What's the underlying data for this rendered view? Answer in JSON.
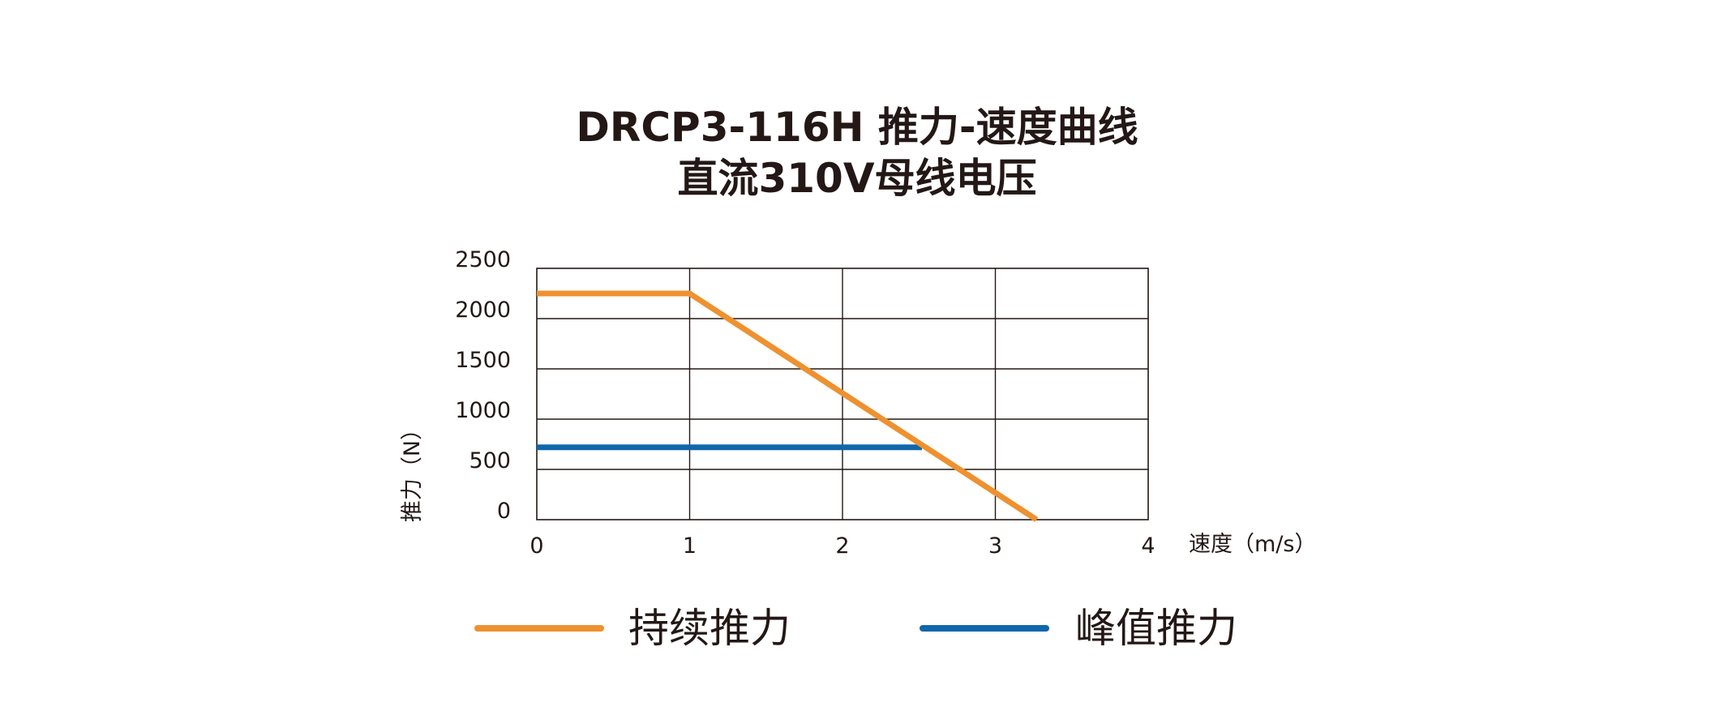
{
  "chart_data": {
    "type": "line",
    "title": "DRCP3-116H 推力-速度曲线",
    "subtitle": "直流310V母线电压",
    "xlabel": "速度（m/s）",
    "ylabel": "推力（N）",
    "xlim": [
      0,
      4
    ],
    "ylim": [
      0,
      2500
    ],
    "x_ticks": [
      "0",
      "1",
      "2",
      "3",
      "4"
    ],
    "y_ticks": [
      "0",
      "500",
      "1000",
      "1500",
      "2000",
      "2500"
    ],
    "grid": true,
    "legend_placement": "bottom",
    "series": [
      {
        "name": "持续推力",
        "color": "#EE912F",
        "points": [
          [
            0,
            2250
          ],
          [
            1,
            2250
          ],
          [
            3.27,
            0
          ]
        ]
      },
      {
        "name": "峰值推力",
        "color": "#0F67AA",
        "points": [
          [
            0,
            720
          ],
          [
            2.52,
            720
          ]
        ]
      }
    ]
  }
}
